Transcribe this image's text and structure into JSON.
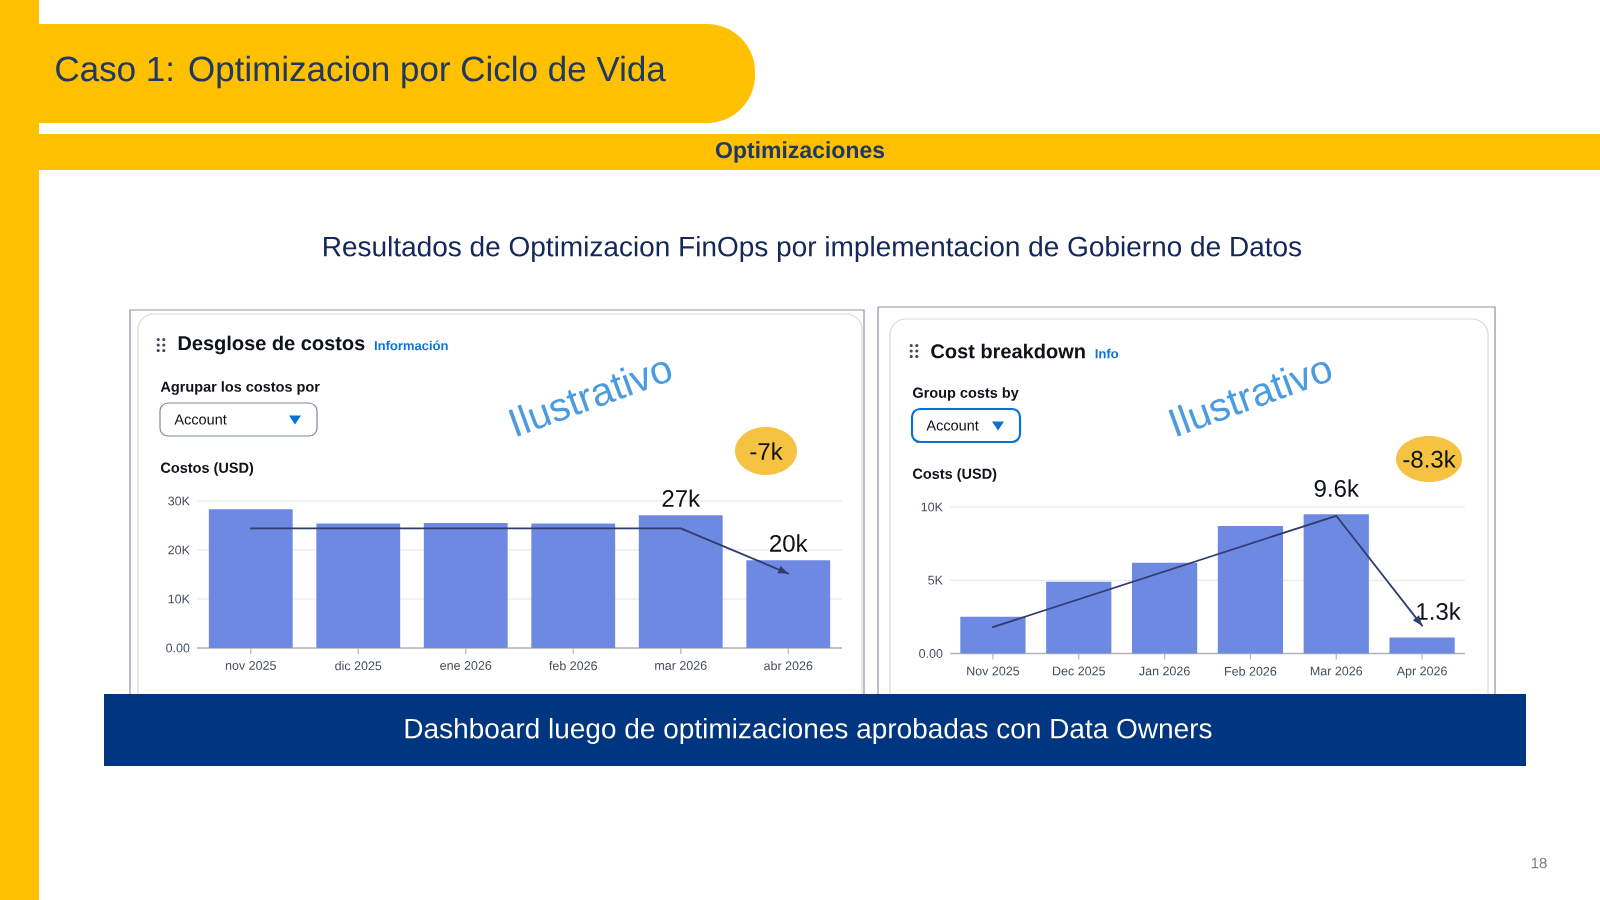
{
  "chart_data": [
    {
      "type": "other",
      "title": "Caso 1: Optimizacion por Ciclo de Vida",
      "subtitle": "Optimizaciones",
      "annotations": [
        "Resultados de Optimizacion FinOps por implementacion de Gobierno de Datos",
        "Dashboard luego de optimizaciones aprobadas con Data Owners",
        "18"
      ]
    },
    {
      "type": "bar",
      "title": "Desglose de costos",
      "ylabel": "Costos (USD)",
      "categories": [
        "nov 2025",
        "dic 2025",
        "ene 2026",
        "feb 2026",
        "mar 2026",
        "abr 2026"
      ],
      "series": [
        {
          "type": "bar",
          "color": "#6e89e2",
          "values": [
            28300,
            25400,
            25500,
            25400,
            27100,
            17900
          ]
        },
        {
          "type": "line",
          "color": "#2e3c6e",
          "x": [
            "nov 2025",
            "mar 2026",
            "abr 2026"
          ],
          "values": [
            24400,
            24400,
            15200
          ]
        }
      ],
      "ylim": [
        0,
        30000
      ],
      "yticks": [
        {
          "value": 0,
          "label": "0.00"
        },
        {
          "value": 10000,
          "label": "10K"
        },
        {
          "value": 20000,
          "label": "20K"
        },
        {
          "value": 30000,
          "label": "30K"
        }
      ],
      "grid": "y",
      "annotations": [
        "Información",
        "Agrupar los costos por",
        "Account",
        "-7k",
        {
          "text": "27k",
          "x": "mar 2026",
          "y": 27100
        },
        {
          "text": "20k",
          "x": "abr 2026",
          "y": 17900
        },
        "Ilustrativo"
      ]
    },
    {
      "type": "bar",
      "title": "Cost breakdown",
      "ylabel": "Costs (USD)",
      "categories": [
        "Nov 2025",
        "Dec 2025",
        "Jan 2026",
        "Feb 2026",
        "Mar 2026",
        "Apr 2026"
      ],
      "series": [
        {
          "type": "bar",
          "color": "#6e89e2",
          "values": [
            2500,
            4900,
            6200,
            8700,
            9500,
            1100
          ]
        },
        {
          "type": "line",
          "color": "#2e3c6e",
          "x": [
            "Nov 2025",
            "Mar 2026",
            "Apr 2026"
          ],
          "values": [
            1800,
            9400,
            1900
          ]
        }
      ],
      "ylim": [
        0,
        10000
      ],
      "yticks": [
        {
          "value": 0,
          "label": "0.00"
        },
        {
          "value": 5000,
          "label": "5K"
        },
        {
          "value": 10000,
          "label": "10K"
        }
      ],
      "grid": "y",
      "annotations": [
        "Info",
        "Group costs by",
        "Account",
        "-8.3k",
        {
          "text": "9.6k",
          "x": "Mar 2026",
          "y": 9500
        },
        {
          "text": "1.3k",
          "x": "Apr 2026",
          "y": 1100
        },
        "Ilustrativo"
      ]
    }
  ]
}
